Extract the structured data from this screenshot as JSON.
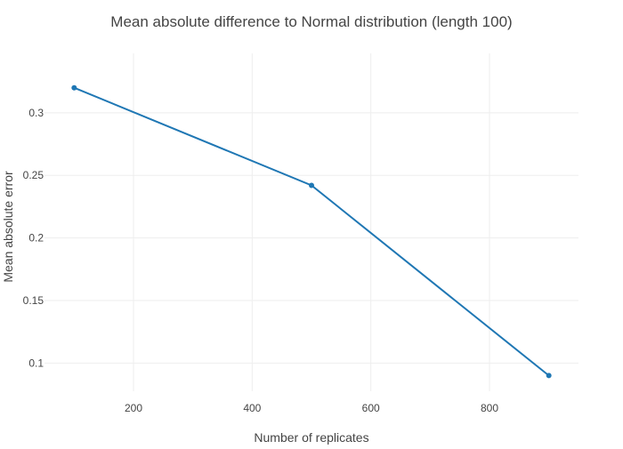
{
  "chart_data": {
    "type": "line",
    "title": "Mean absolute difference to Normal distribution (length 100)",
    "xlabel": "Number of replicates",
    "ylabel": "Mean absolute error",
    "xlim": [
      50,
      950
    ],
    "ylim": [
      0.0775,
      0.3475
    ],
    "x_ticks": [
      200,
      400,
      600,
      800
    ],
    "y_ticks": [
      0.1,
      0.15,
      0.2,
      0.25,
      0.3
    ],
    "x_tick_labels": [
      "200",
      "400",
      "600",
      "800"
    ],
    "y_tick_labels": [
      "0.1",
      "0.15",
      "0.2",
      "0.25",
      "0.3"
    ],
    "grid": true,
    "legend": "none",
    "series": [
      {
        "x": [
          100,
          500,
          900
        ],
        "y": [
          0.32,
          0.242,
          0.09
        ],
        "color": "#1f77b4",
        "mode": "lines+markers"
      }
    ]
  }
}
